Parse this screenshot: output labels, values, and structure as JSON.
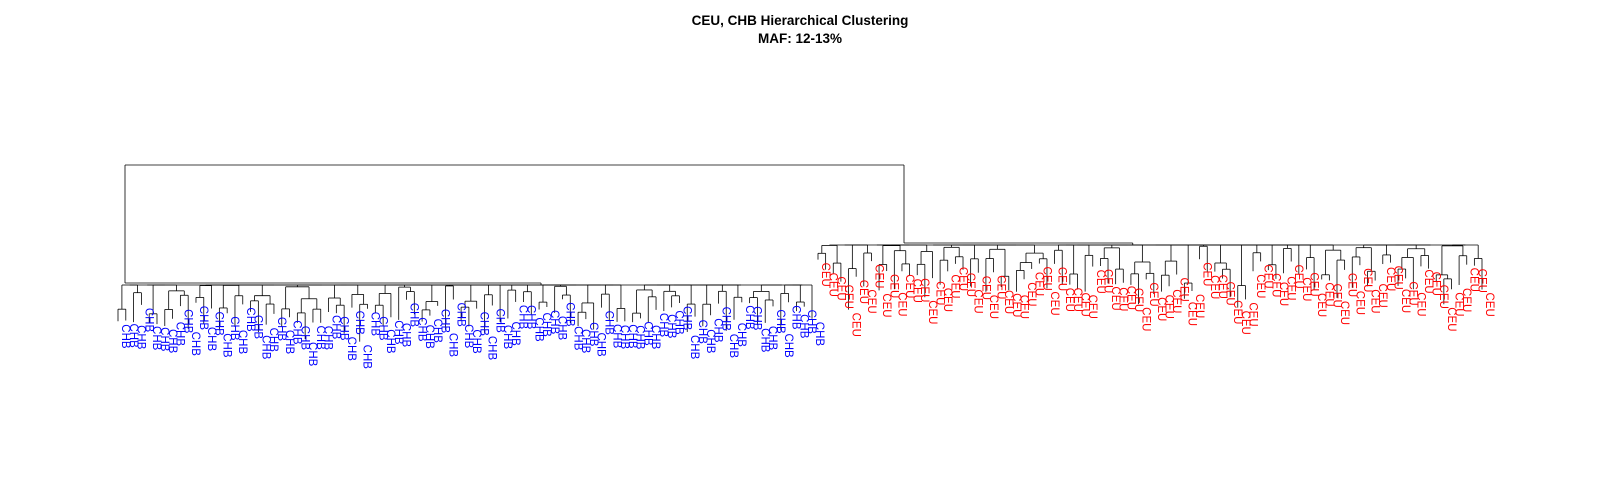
{
  "figure": {
    "title": "CEU, CHB Hierarchical Clustering",
    "subtitle": "MAF: 12-13%"
  },
  "colors": {
    "CHB": "#0000ff",
    "CEU": "#ff0000",
    "branch": "#000000"
  },
  "groups": [
    {
      "label": "CHB",
      "count": 90
    },
    {
      "label": "CEU",
      "count": 88
    }
  ]
}
